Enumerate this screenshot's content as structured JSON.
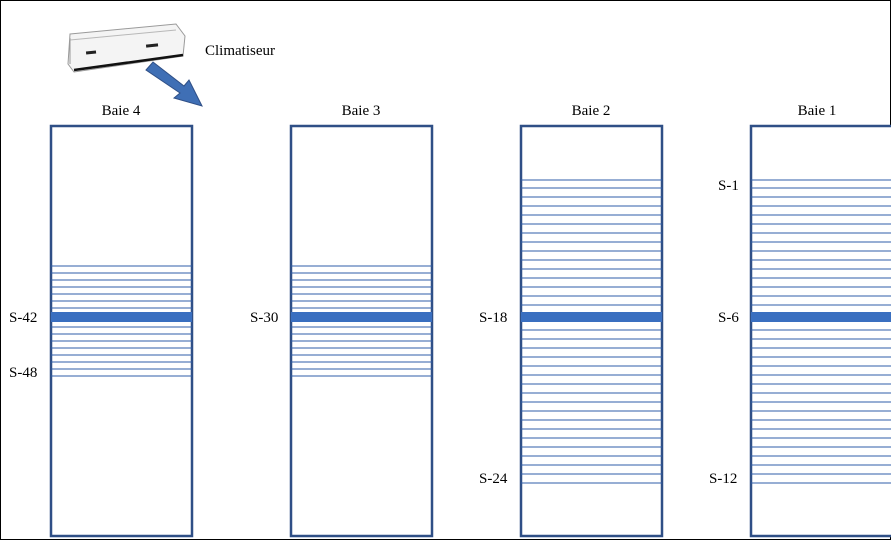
{
  "colors": {
    "rack_border": "#2f4f86",
    "shelf_line": "#2f5ea8",
    "highlight_shelf": "#3a6fc0",
    "arrow": "#3f6fb5"
  },
  "aircon": {
    "label": "Climatiseur",
    "icon": "air-conditioner-unit-image"
  },
  "racks": [
    {
      "title": "Baie 4",
      "labels": [
        "S-42",
        "S-48"
      ]
    },
    {
      "title": "Baie 3",
      "labels": [
        "S-30"
      ]
    },
    {
      "title": "Baie 2",
      "labels": [
        "S-18",
        "S-24"
      ]
    },
    {
      "title": "Baie 1",
      "labels": [
        "S-1",
        "S-6",
        "S-12"
      ]
    }
  ]
}
